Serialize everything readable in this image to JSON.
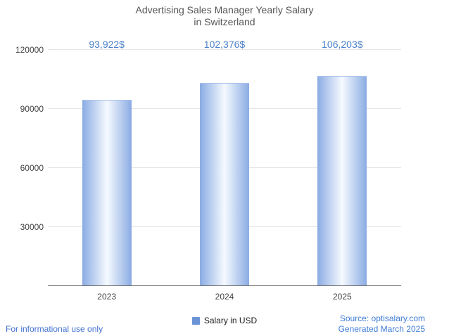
{
  "title": {
    "line1": "Advertising Sales Manager Yearly Salary",
    "line2": "in Switzerland"
  },
  "chart_data": {
    "type": "bar",
    "title": "Advertising Sales Manager Yearly Salary in Switzerland",
    "categories": [
      "2023",
      "2024",
      "2025"
    ],
    "values": [
      93922,
      102376,
      106203
    ],
    "value_labels": [
      "93,922$",
      "102,376$",
      "106,203$"
    ],
    "xlabel": "",
    "ylabel": "",
    "ylim": [
      0,
      120000
    ],
    "yticks": [
      30000,
      60000,
      90000,
      120000
    ],
    "ytick_labels": [
      "30000",
      "60000",
      "90000",
      "120000"
    ],
    "grid": true,
    "legend_position": "bottom",
    "colors": {
      "bar_edge": "#8aabe3",
      "bar_center": "#f6faff",
      "value_label": "#4a80c9",
      "legend_marker": "#6b93d6",
      "gridline": "#e6e6e6",
      "axis": "#6f6f6f"
    }
  },
  "legend": {
    "label": "Salary in USD"
  },
  "footer": {
    "left": "For informational use only",
    "source": "Source: optisalary.com",
    "generated": "Generated March 2025"
  }
}
